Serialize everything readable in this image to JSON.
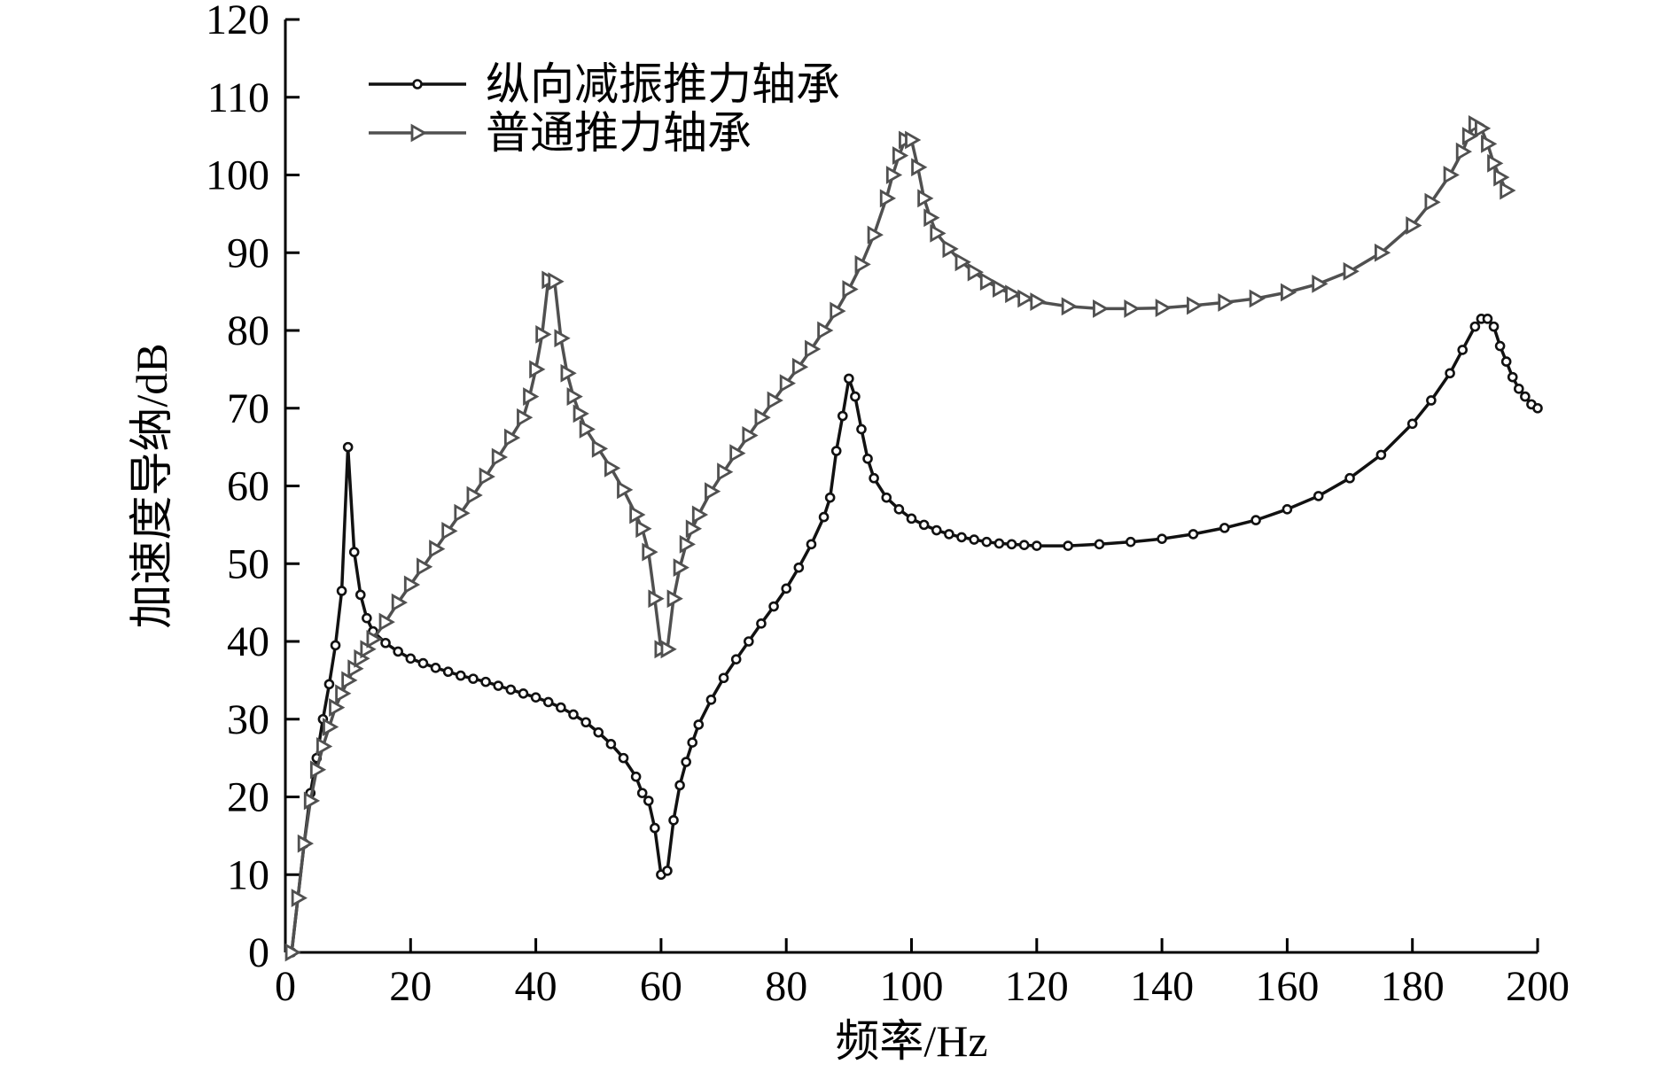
{
  "chart_data": {
    "type": "line",
    "xlabel": "频率/Hz",
    "ylabel": "加速度导纳/dB",
    "xlim": [
      0,
      200
    ],
    "ylim": [
      0,
      120
    ],
    "x_ticks": [
      0,
      20,
      40,
      60,
      80,
      100,
      120,
      140,
      160,
      180,
      200
    ],
    "y_ticks": [
      0,
      10,
      20,
      30,
      40,
      50,
      60,
      70,
      80,
      90,
      100,
      110,
      120
    ],
    "x_tick_labels": [
      "0",
      "20",
      "40",
      "60",
      "80",
      "100",
      "120",
      "140",
      "160",
      "180",
      "200"
    ],
    "y_tick_labels": [
      "0",
      "10",
      "20",
      "30",
      "40",
      "50",
      "60",
      "70",
      "80",
      "90",
      "100",
      "110",
      "120"
    ],
    "grid": false,
    "legend_position": "top-left",
    "series": [
      {
        "name": "纵向减振推力轴承",
        "color": "#111111",
        "marker": "circle",
        "points": [
          [
            1,
            0
          ],
          [
            3,
            14
          ],
          [
            4,
            20.5
          ],
          [
            5,
            25
          ],
          [
            6,
            30
          ],
          [
            7,
            34.5
          ],
          [
            8,
            39.5
          ],
          [
            9,
            46.5
          ],
          [
            10,
            65
          ],
          [
            11,
            51.5
          ],
          [
            12,
            46
          ],
          [
            13,
            43
          ],
          [
            14,
            41.3
          ],
          [
            16,
            39.8
          ],
          [
            18,
            38.7
          ],
          [
            20,
            37.8
          ],
          [
            22,
            37.2
          ],
          [
            24,
            36.6
          ],
          [
            26,
            36.1
          ],
          [
            28,
            35.6
          ],
          [
            30,
            35.2
          ],
          [
            32,
            34.8
          ],
          [
            34,
            34.3
          ],
          [
            36,
            33.8
          ],
          [
            38,
            33.3
          ],
          [
            40,
            32.8
          ],
          [
            42,
            32.2
          ],
          [
            44,
            31.5
          ],
          [
            46,
            30.6
          ],
          [
            48,
            29.6
          ],
          [
            50,
            28.3
          ],
          [
            52,
            26.8
          ],
          [
            54,
            25
          ],
          [
            56,
            22.6
          ],
          [
            57,
            20.5
          ],
          [
            58,
            19.5
          ],
          [
            59,
            16
          ],
          [
            60,
            10
          ],
          [
            61,
            10.5
          ],
          [
            62,
            17
          ],
          [
            63,
            21.5
          ],
          [
            64,
            24.5
          ],
          [
            65,
            27
          ],
          [
            66,
            29.3
          ],
          [
            68,
            32.5
          ],
          [
            70,
            35.3
          ],
          [
            72,
            37.7
          ],
          [
            74,
            40
          ],
          [
            76,
            42.3
          ],
          [
            78,
            44.5
          ],
          [
            80,
            46.8
          ],
          [
            82,
            49.5
          ],
          [
            84,
            52.5
          ],
          [
            86,
            56
          ],
          [
            87,
            58.5
          ],
          [
            88,
            64.5
          ],
          [
            89,
            69
          ],
          [
            90,
            73.8
          ],
          [
            91,
            71.5
          ],
          [
            92,
            67.3
          ],
          [
            93,
            63.5
          ],
          [
            94,
            61
          ],
          [
            96,
            58.5
          ],
          [
            98,
            57
          ],
          [
            100,
            55.8
          ],
          [
            102,
            55
          ],
          [
            104,
            54.3
          ],
          [
            106,
            53.8
          ],
          [
            108,
            53.4
          ],
          [
            110,
            53.1
          ],
          [
            112,
            52.8
          ],
          [
            114,
            52.6
          ],
          [
            116,
            52.5
          ],
          [
            118,
            52.4
          ],
          [
            120,
            52.3
          ],
          [
            125,
            52.3
          ],
          [
            130,
            52.5
          ],
          [
            135,
            52.8
          ],
          [
            140,
            53.2
          ],
          [
            145,
            53.8
          ],
          [
            150,
            54.6
          ],
          [
            155,
            55.6
          ],
          [
            160,
            57
          ],
          [
            165,
            58.7
          ],
          [
            170,
            61
          ],
          [
            175,
            64
          ],
          [
            180,
            68
          ],
          [
            183,
            71
          ],
          [
            186,
            74.5
          ],
          [
            188,
            77.5
          ],
          [
            190,
            80.5
          ],
          [
            191,
            81.5
          ],
          [
            192,
            81.5
          ],
          [
            193,
            80.5
          ],
          [
            194,
            78
          ],
          [
            195,
            76
          ],
          [
            196,
            74
          ],
          [
            197,
            72.5
          ],
          [
            198,
            71.5
          ],
          [
            199,
            70.5
          ],
          [
            200,
            70
          ]
        ]
      },
      {
        "name": "普通推力轴承",
        "color": "#505050",
        "marker": "triangle-right",
        "points": [
          [
            1,
            0
          ],
          [
            2,
            7
          ],
          [
            3,
            14
          ],
          [
            4,
            19.5
          ],
          [
            5,
            23.5
          ],
          [
            6,
            26.5
          ],
          [
            7,
            29
          ],
          [
            8,
            31.5
          ],
          [
            9,
            33.3
          ],
          [
            10,
            35
          ],
          [
            11,
            36.5
          ],
          [
            12,
            37.8
          ],
          [
            13,
            39
          ],
          [
            14,
            40.3
          ],
          [
            16,
            42.5
          ],
          [
            18,
            45
          ],
          [
            20,
            47.3
          ],
          [
            22,
            49.6
          ],
          [
            24,
            51.9
          ],
          [
            26,
            54.2
          ],
          [
            28,
            56.5
          ],
          [
            30,
            58.8
          ],
          [
            32,
            61.2
          ],
          [
            34,
            63.7
          ],
          [
            36,
            66.2
          ],
          [
            38,
            68.8
          ],
          [
            39,
            71.5
          ],
          [
            40,
            75
          ],
          [
            41,
            79.5
          ],
          [
            42,
            86.5
          ],
          [
            43,
            86.3
          ],
          [
            44,
            79
          ],
          [
            45,
            74.5
          ],
          [
            46,
            71.5
          ],
          [
            47,
            69.3
          ],
          [
            48,
            67.3
          ],
          [
            50,
            64.8
          ],
          [
            52,
            62.3
          ],
          [
            54,
            59.5
          ],
          [
            56,
            56.3
          ],
          [
            57,
            54.5
          ],
          [
            58,
            51.5
          ],
          [
            59,
            45.5
          ],
          [
            60,
            39
          ],
          [
            61,
            39
          ],
          [
            62,
            45.5
          ],
          [
            63,
            49.5
          ],
          [
            64,
            52.5
          ],
          [
            65,
            54.5
          ],
          [
            66,
            56.3
          ],
          [
            68,
            59.3
          ],
          [
            70,
            61.8
          ],
          [
            72,
            64.2
          ],
          [
            74,
            66.5
          ],
          [
            76,
            68.8
          ],
          [
            78,
            71
          ],
          [
            80,
            73.2
          ],
          [
            82,
            75.3
          ],
          [
            84,
            77.6
          ],
          [
            86,
            80
          ],
          [
            88,
            82.5
          ],
          [
            90,
            85.3
          ],
          [
            92,
            88.5
          ],
          [
            94,
            92.3
          ],
          [
            96,
            97
          ],
          [
            97,
            100
          ],
          [
            98,
            102.5
          ],
          [
            99,
            104.5
          ],
          [
            100,
            104.5
          ],
          [
            101,
            101
          ],
          [
            102,
            97
          ],
          [
            103,
            94.5
          ],
          [
            104,
            92.5
          ],
          [
            106,
            90.5
          ],
          [
            108,
            88.8
          ],
          [
            110,
            87.5
          ],
          [
            112,
            86.3
          ],
          [
            114,
            85.4
          ],
          [
            116,
            84.7
          ],
          [
            118,
            84.1
          ],
          [
            120,
            83.7
          ],
          [
            125,
            83.1
          ],
          [
            130,
            82.8
          ],
          [
            135,
            82.8
          ],
          [
            140,
            82.9
          ],
          [
            145,
            83.2
          ],
          [
            150,
            83.6
          ],
          [
            155,
            84.1
          ],
          [
            160,
            84.9
          ],
          [
            165,
            86
          ],
          [
            170,
            87.6
          ],
          [
            175,
            90
          ],
          [
            180,
            93.5
          ],
          [
            183,
            96.5
          ],
          [
            186,
            100
          ],
          [
            188,
            103
          ],
          [
            189,
            105
          ],
          [
            190,
            106.5
          ],
          [
            191,
            106
          ],
          [
            192,
            104
          ],
          [
            193,
            101.5
          ],
          [
            194,
            99.7
          ],
          [
            195,
            98
          ]
        ]
      }
    ]
  }
}
